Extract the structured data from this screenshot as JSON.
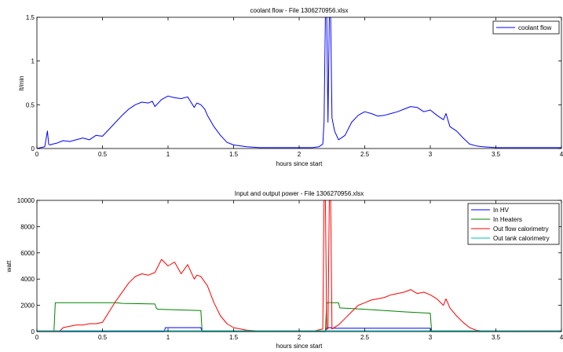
{
  "chart_data": [
    {
      "type": "line",
      "title": "coolant flow - File 1306270956.xlsx",
      "xlabel": "hours since start",
      "ylabel": "lt/min",
      "xlim": [
        0,
        4
      ],
      "ylim": [
        0,
        1.5
      ],
      "xticks": [
        "0",
        "0.5",
        "1",
        "1.5",
        "2",
        "2.5",
        "3",
        "3.5",
        "4"
      ],
      "yticks": [
        "0",
        "0.5",
        "1",
        "1.5"
      ],
      "grid": false,
      "legend": "top-right",
      "series": [
        {
          "name": "coolant flow",
          "color": "#0000ff",
          "x": [
            0,
            0.06,
            0.08,
            0.09,
            0.1,
            0.12,
            0.15,
            0.2,
            0.25,
            0.3,
            0.35,
            0.4,
            0.45,
            0.5,
            0.55,
            0.6,
            0.65,
            0.7,
            0.75,
            0.8,
            0.85,
            0.88,
            0.9,
            0.95,
            1.0,
            1.05,
            1.1,
            1.15,
            1.2,
            1.22,
            1.25,
            1.28,
            1.3,
            1.35,
            1.4,
            1.45,
            1.5,
            1.6,
            1.7,
            1.8,
            1.9,
            2.0,
            2.1,
            2.15,
            2.18,
            2.19,
            2.2,
            2.21,
            2.22,
            2.23,
            2.24,
            2.25,
            2.27,
            2.3,
            2.35,
            2.4,
            2.45,
            2.5,
            2.55,
            2.6,
            2.65,
            2.7,
            2.75,
            2.8,
            2.85,
            2.9,
            2.95,
            3.0,
            3.05,
            3.1,
            3.12,
            3.15,
            3.2,
            3.25,
            3.3,
            3.35,
            3.4,
            3.5,
            3.6,
            3.7,
            3.8,
            4.0
          ],
          "y": [
            0,
            0.02,
            0.2,
            0.05,
            0.04,
            0.05,
            0.06,
            0.09,
            0.08,
            0.1,
            0.12,
            0.1,
            0.15,
            0.14,
            0.22,
            0.3,
            0.38,
            0.45,
            0.5,
            0.53,
            0.52,
            0.54,
            0.48,
            0.56,
            0.6,
            0.58,
            0.57,
            0.59,
            0.47,
            0.52,
            0.5,
            0.45,
            0.38,
            0.25,
            0.15,
            0.07,
            0.04,
            0.02,
            0.01,
            0.01,
            0.01,
            0.01,
            0.01,
            0.02,
            0.05,
            0.3,
            1.5,
            1.5,
            0.3,
            1.5,
            1.5,
            0.35,
            0.2,
            0.1,
            0.15,
            0.3,
            0.38,
            0.42,
            0.4,
            0.37,
            0.38,
            0.4,
            0.42,
            0.45,
            0.48,
            0.47,
            0.42,
            0.44,
            0.38,
            0.33,
            0.4,
            0.25,
            0.2,
            0.12,
            0.05,
            0.03,
            0.02,
            0.01,
            0.01,
            0.01,
            0.01,
            0.01
          ]
        }
      ]
    },
    {
      "type": "line",
      "title": "Input and output power - File 1306270956.xlsx",
      "xlabel": "hours since start",
      "ylabel": "watt",
      "xlim": [
        0,
        4
      ],
      "ylim": [
        0,
        10000
      ],
      "xticks": [
        "0",
        "0.5",
        "1",
        "1.5",
        "2",
        "2.5",
        "3",
        "3.5",
        "4"
      ],
      "yticks": [
        "0",
        "2000",
        "4000",
        "6000",
        "8000",
        "10000"
      ],
      "grid": false,
      "legend": "top-right",
      "series": [
        {
          "name": "In HV",
          "color": "#0000ff",
          "x": [
            0,
            0.97,
            0.98,
            1.25,
            1.26,
            2.2,
            2.21,
            2.24,
            2.25,
            3.0,
            3.01,
            4.0
          ],
          "y": [
            0,
            0,
            300,
            300,
            0,
            0,
            300,
            300,
            250,
            250,
            0,
            0
          ]
        },
        {
          "name": "In Heaters",
          "color": "#008000",
          "x": [
            0,
            0.13,
            0.14,
            0.6,
            0.65,
            0.9,
            0.91,
            0.92,
            0.93,
            1.25,
            1.26,
            2.2,
            2.21,
            2.3,
            2.31,
            2.5,
            2.8,
            3.0,
            3.01,
            4.0
          ],
          "y": [
            0,
            0,
            2200,
            2200,
            2150,
            2100,
            1800,
            1700,
            1700,
            1600,
            0,
            0,
            2200,
            2200,
            1800,
            1700,
            1500,
            1400,
            0,
            0
          ],
          "step": true
        },
        {
          "name": "Out flow calorimetry",
          "color": "#ff0000",
          "x": [
            0,
            0.17,
            0.2,
            0.25,
            0.3,
            0.35,
            0.4,
            0.45,
            0.5,
            0.55,
            0.6,
            0.65,
            0.7,
            0.75,
            0.8,
            0.85,
            0.9,
            0.95,
            1.0,
            1.05,
            1.1,
            1.15,
            1.2,
            1.22,
            1.25,
            1.3,
            1.35,
            1.4,
            1.45,
            1.5,
            1.6,
            1.7,
            1.8,
            1.9,
            2.0,
            2.1,
            2.18,
            2.19,
            2.2,
            2.21,
            2.22,
            2.23,
            2.24,
            2.25,
            2.3,
            2.35,
            2.4,
            2.45,
            2.5,
            2.55,
            2.6,
            2.65,
            2.7,
            2.75,
            2.8,
            2.85,
            2.9,
            2.95,
            3.0,
            3.05,
            3.1,
            3.12,
            3.15,
            3.2,
            3.25,
            3.3,
            3.35,
            3.4,
            3.5,
            3.6,
            4.0
          ],
          "y": [
            0,
            0,
            300,
            400,
            500,
            500,
            600,
            600,
            700,
            1500,
            2300,
            3000,
            3700,
            4200,
            4400,
            4300,
            4500,
            5500,
            5000,
            5300,
            4400,
            5100,
            4000,
            4300,
            4200,
            3500,
            2200,
            1200,
            600,
            300,
            100,
            50,
            30,
            20,
            20,
            20,
            200,
            10000,
            10000,
            200,
            200,
            10000,
            10000,
            200,
            500,
            1000,
            1500,
            2000,
            2200,
            2400,
            2500,
            2600,
            2800,
            2900,
            3000,
            3200,
            2900,
            3000,
            2800,
            2500,
            2000,
            2500,
            1800,
            1200,
            700,
            300,
            100,
            50,
            20,
            10,
            0
          ]
        },
        {
          "name": "Out tank calorimetry",
          "color": "#00bfbf",
          "x": [
            0,
            4.0
          ],
          "y": [
            60,
            60
          ]
        }
      ]
    }
  ]
}
